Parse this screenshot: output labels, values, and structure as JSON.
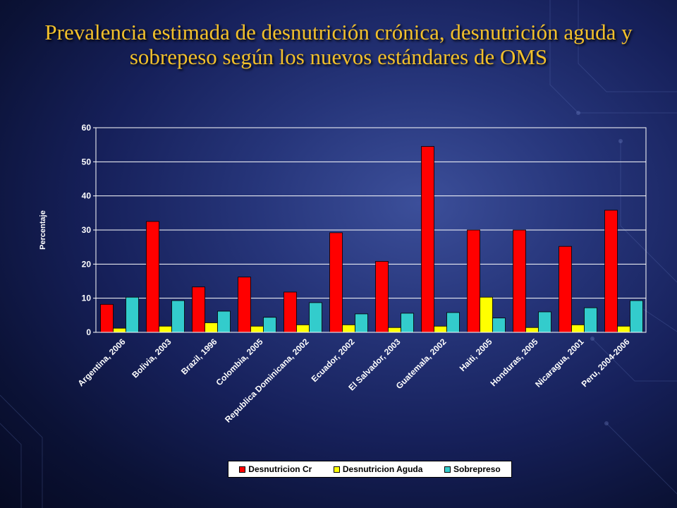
{
  "title": "Prevalencia estimada de desnutrición crónica, desnutrición aguda y sobrepeso según los nuevos estándares de OMS",
  "chart_data": {
    "type": "bar",
    "title": "Prevalencia estimada de desnutrición crónica, desnutrición aguda y sobrepeso según los nuevos estándares de OMS",
    "xlabel": "",
    "ylabel": "Percentaje",
    "ylim": [
      0,
      60
    ],
    "yticks": [
      0,
      10,
      20,
      30,
      40,
      50,
      60
    ],
    "grid": true,
    "legend_position": "bottom",
    "categories": [
      "Argentina, 2006",
      "Bolivia, 2003",
      "Brazil, 1996",
      "Colombia, 2005",
      "Republica Dominicana, 2002",
      "Ecuador, 2002",
      "El Salvador, 2003",
      "Guatemala, 2002",
      "Haiti, 2005",
      "Honduras, 2005",
      "Nicaragua, 2001",
      "Peru, 2004-2006"
    ],
    "series": [
      {
        "name": "Desnutricion Cr",
        "color": "#ff0000",
        "values": [
          8.2,
          32.5,
          13.3,
          16.2,
          11.8,
          29.2,
          20.8,
          54.5,
          30.0,
          30.0,
          25.2,
          35.8
        ]
      },
      {
        "name": "Desnutricion Aguda",
        "color": "#ffff00",
        "values": [
          1.2,
          1.8,
          2.8,
          1.8,
          2.2,
          2.2,
          1.4,
          1.8,
          10.3,
          1.4,
          2.2,
          1.8
        ]
      },
      {
        "name": "Sobrepreso",
        "color": "#33cccc",
        "values": [
          10.3,
          9.3,
          6.2,
          4.4,
          8.7,
          5.4,
          5.6,
          5.8,
          4.2,
          6.0,
          7.2,
          9.3
        ]
      }
    ]
  },
  "colors": {
    "title": "#f2c02b",
    "axis_text": "#ffffff",
    "gridline": "#ffffff"
  }
}
